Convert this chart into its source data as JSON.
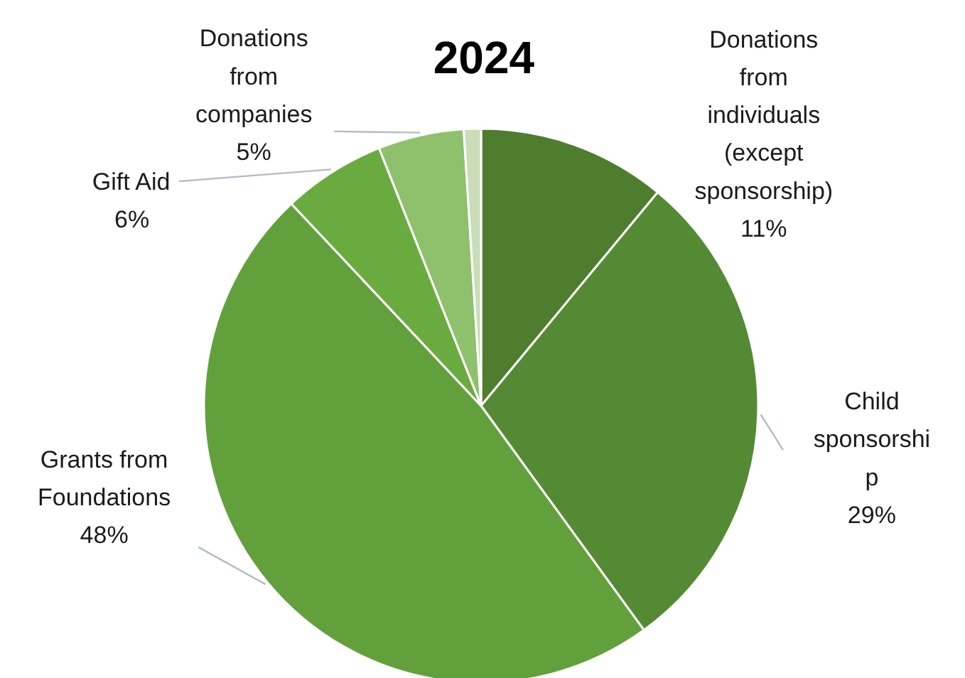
{
  "chart_data": {
    "type": "pie",
    "title": "2024",
    "categories": [
      "Donations\nfrom\nindividuals\n(except\nsponsorship)",
      "Child\nsponsorshi\np",
      "Grants from\nFoundations",
      "Gift Aid",
      "Donations\nfrom\ncompanies",
      null
    ],
    "values": [
      11,
      29,
      48,
      6,
      5,
      1
    ],
    "value_labels": [
      "11%",
      "29%",
      "48%",
      "6%",
      "5%",
      null
    ],
    "colors": [
      "#4e7d2e",
      "#548a33",
      "#62a03c",
      "#6aab40",
      "#8fc06c",
      "#c9ddb9"
    ]
  }
}
